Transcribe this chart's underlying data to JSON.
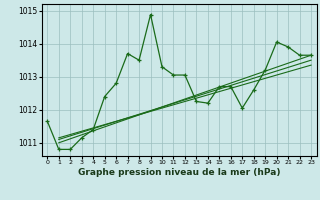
{
  "title": "Graphe pression niveau de la mer (hPa)",
  "background_color": "#cde8e8",
  "grid_color": "#9bbfbf",
  "line_color": "#1a6b1a",
  "xlim": [
    -0.5,
    23.5
  ],
  "ylim": [
    1010.6,
    1015.2
  ],
  "yticks": [
    1011,
    1012,
    1013,
    1014,
    1015
  ],
  "xticks": [
    0,
    1,
    2,
    3,
    4,
    5,
    6,
    7,
    8,
    9,
    10,
    11,
    12,
    13,
    14,
    15,
    16,
    17,
    18,
    19,
    20,
    21,
    22,
    23
  ],
  "main_series": {
    "x": [
      0,
      1,
      2,
      3,
      4,
      5,
      6,
      7,
      8,
      9,
      10,
      11,
      12,
      13,
      14,
      15,
      16,
      17,
      18,
      19,
      20,
      21,
      22,
      23
    ],
    "y": [
      1011.65,
      1010.8,
      1010.8,
      1011.15,
      1011.4,
      1012.4,
      1012.8,
      1013.7,
      1013.5,
      1014.88,
      1013.3,
      1013.05,
      1013.05,
      1012.25,
      1012.2,
      1012.7,
      1012.7,
      1012.05,
      1012.6,
      1013.2,
      1014.05,
      1013.9,
      1013.65,
      1013.65
    ]
  },
  "trend1": {
    "x": [
      1,
      23
    ],
    "y": [
      1011.0,
      1013.65
    ]
  },
  "trend2": {
    "x": [
      1,
      23
    ],
    "y": [
      1011.1,
      1013.5
    ]
  },
  "trend3": {
    "x": [
      1,
      23
    ],
    "y": [
      1011.15,
      1013.35
    ]
  }
}
